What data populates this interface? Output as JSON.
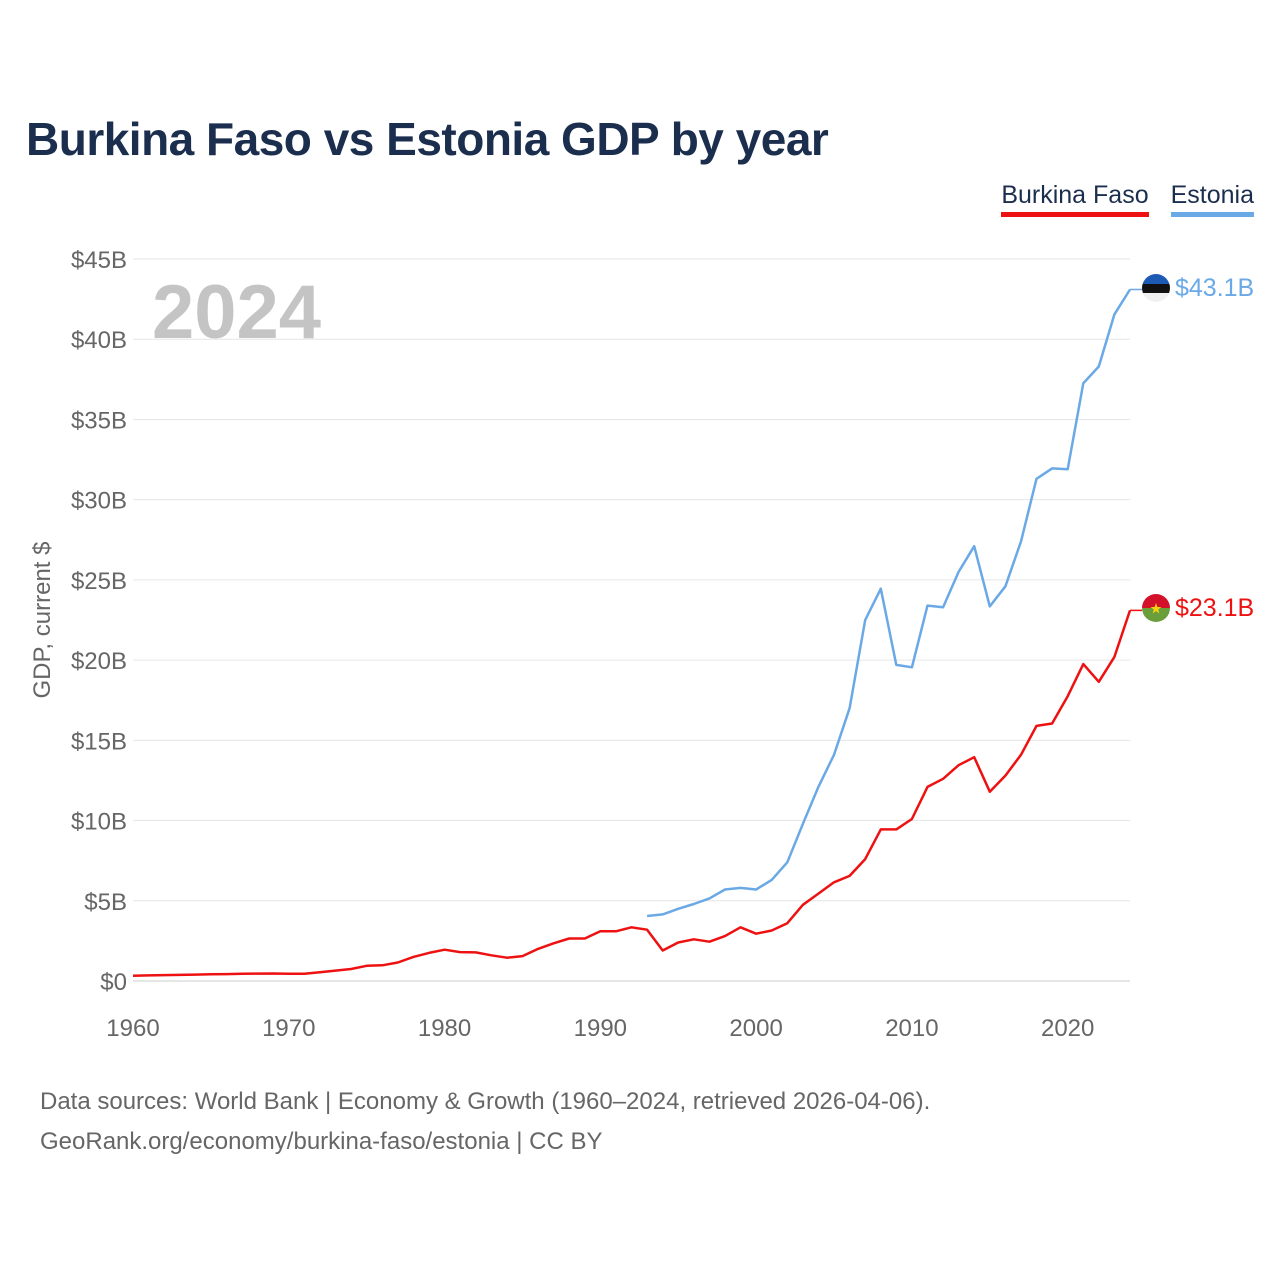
{
  "title": "Burkina Faso vs Estonia GDP by year",
  "legend": [
    "Burkina Faso",
    "Estonia"
  ],
  "year_watermark": "2024",
  "footer": {
    "line1": "Data sources: World Bank | Economy & Growth (1960–2024, retrieved 2026-04-06).",
    "line2": "GeoRank.org/economy/burkina-faso/estonia | CC BY"
  },
  "colors": {
    "burkina": "#ee1111",
    "estonia": "#6aa9e6",
    "title": "#1b2e4e"
  },
  "chart_data": {
    "type": "line",
    "title": "Burkina Faso vs Estonia GDP by year",
    "ylabel": "GDP, current $",
    "xlabel": "",
    "xlim": [
      1960,
      2024
    ],
    "ylim": [
      0,
      45
    ],
    "y_unit": "billions USD",
    "y_ticks": [
      0,
      5,
      10,
      15,
      20,
      25,
      30,
      35,
      40,
      45
    ],
    "y_tick_labels": [
      "$0",
      "$5B",
      "$10B",
      "$15B",
      "$20B",
      "$25B",
      "$30B",
      "$35B",
      "$40B",
      "$45B"
    ],
    "x_ticks": [
      1960,
      1970,
      1980,
      1990,
      2000,
      2010,
      2020
    ],
    "x_tick_labels": [
      "1960",
      "1970",
      "1980",
      "1990",
      "2000",
      "2010",
      "2020"
    ],
    "grid": true,
    "legend_position": "top-right",
    "series": [
      {
        "name": "Burkina Faso",
        "color": "#ee1111",
        "end_label": "$23.1B",
        "x": [
          1960,
          1961,
          1962,
          1963,
          1964,
          1965,
          1966,
          1967,
          1968,
          1969,
          1970,
          1971,
          1972,
          1973,
          1974,
          1975,
          1976,
          1977,
          1978,
          1979,
          1980,
          1981,
          1982,
          1983,
          1984,
          1985,
          1986,
          1987,
          1988,
          1989,
          1990,
          1991,
          1992,
          1993,
          1994,
          1995,
          1996,
          1997,
          1998,
          1999,
          2000,
          2001,
          2002,
          2003,
          2004,
          2005,
          2006,
          2007,
          2008,
          2009,
          2010,
          2011,
          2012,
          2013,
          2014,
          2015,
          2016,
          2017,
          2018,
          2019,
          2020,
          2021,
          2022,
          2023,
          2024
        ],
        "values": [
          0.33,
          0.35,
          0.37,
          0.38,
          0.4,
          0.42,
          0.43,
          0.45,
          0.46,
          0.47,
          0.45,
          0.45,
          0.55,
          0.65,
          0.75,
          0.95,
          0.98,
          1.15,
          1.5,
          1.75,
          1.95,
          1.8,
          1.78,
          1.6,
          1.45,
          1.55,
          2.0,
          2.35,
          2.65,
          2.65,
          3.1,
          3.1,
          3.35,
          3.2,
          1.9,
          2.4,
          2.6,
          2.45,
          2.8,
          3.35,
          2.95,
          3.15,
          3.6,
          4.75,
          5.45,
          6.15,
          6.55,
          7.6,
          9.45,
          9.45,
          10.1,
          12.1,
          12.6,
          13.45,
          13.95,
          11.8,
          12.8,
          14.1,
          15.9,
          16.05,
          17.75,
          19.75,
          18.65,
          20.2,
          23.1
        ]
      },
      {
        "name": "Estonia",
        "color": "#6aa9e6",
        "end_label": "$43.1B",
        "x": [
          1993,
          1994,
          1995,
          1996,
          1997,
          1998,
          1999,
          2000,
          2001,
          2002,
          2003,
          2004,
          2005,
          2006,
          2007,
          2008,
          2009,
          2010,
          2011,
          2012,
          2013,
          2014,
          2015,
          2016,
          2017,
          2018,
          2019,
          2020,
          2021,
          2022,
          2023,
          2024
        ],
        "values": [
          4.05,
          4.15,
          4.5,
          4.8,
          5.15,
          5.7,
          5.8,
          5.7,
          6.3,
          7.4,
          9.8,
          12.1,
          14.1,
          17.0,
          22.5,
          24.45,
          19.7,
          19.55,
          23.4,
          23.3,
          25.5,
          27.1,
          23.35,
          24.6,
          27.4,
          31.3,
          31.95,
          31.9,
          37.25,
          38.3,
          41.55,
          43.1
        ]
      }
    ]
  }
}
